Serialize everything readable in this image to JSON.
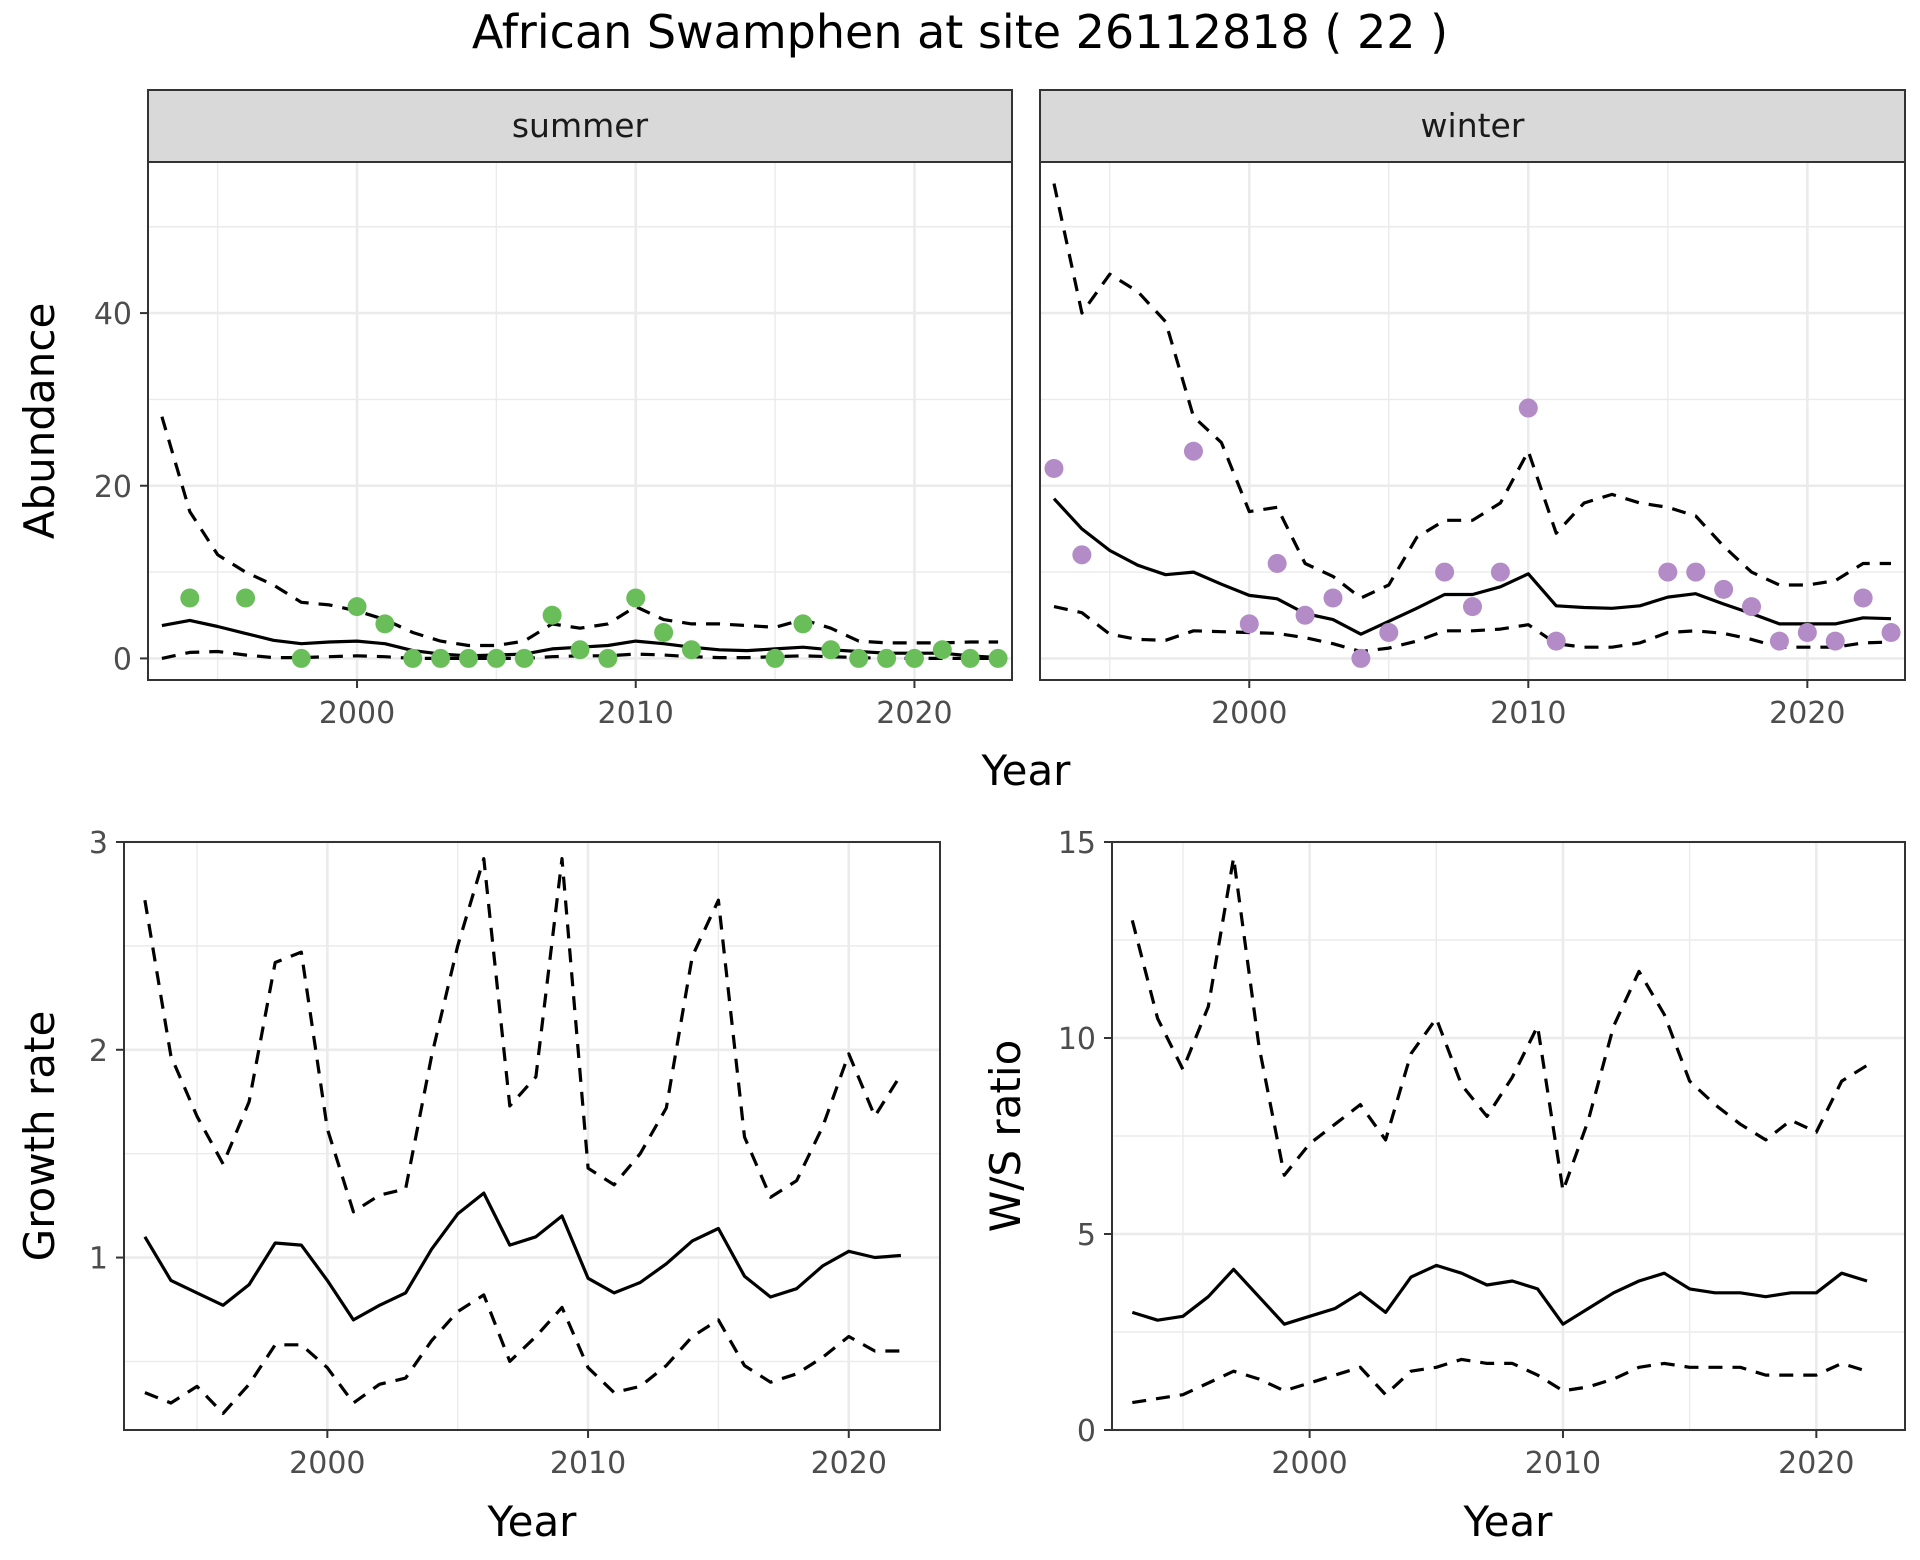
{
  "title": "African Swamphen at site 26112818 ( 22 )",
  "colors": {
    "summer_points": "#6ABE59",
    "winter_points": "#B38BC7",
    "lines": "#000000",
    "grid": "#EBEBEB",
    "strip_bg": "#D9D9D9"
  },
  "chart_data": [
    {
      "type": "scatter",
      "panel": "summer",
      "strip_label": "summer",
      "xlabel": "Year",
      "ylabel": "Abundance",
      "xlim": [
        1992.5,
        2023.5
      ],
      "ylim": [
        -2.5,
        57.5
      ],
      "xticks": [
        2000,
        2010,
        2020
      ],
      "yticks": [
        0,
        20,
        40
      ],
      "points": {
        "x": [
          1994,
          1996,
          1998,
          2000,
          2001,
          2002,
          2003,
          2004,
          2005,
          2006,
          2007,
          2008,
          2009,
          2010,
          2011,
          2012,
          2015,
          2016,
          2017,
          2018,
          2019,
          2020,
          2021,
          2022,
          2023
        ],
        "y": [
          7,
          7,
          0,
          6,
          4,
          0,
          0,
          0,
          0,
          0,
          5,
          1,
          0,
          7,
          3,
          1,
          0,
          4,
          1,
          0,
          0,
          0,
          1,
          0,
          0
        ]
      },
      "lines": [
        {
          "style": "solid",
          "x": [
            1993,
            1994,
            1995,
            1996,
            1997,
            1998,
            1999,
            2000,
            2001,
            2002,
            2003,
            2004,
            2005,
            2006,
            2007,
            2008,
            2009,
            2010,
            2011,
            2012,
            2013,
            2014,
            2015,
            2016,
            2017,
            2018,
            2019,
            2020,
            2021,
            2022,
            2023
          ],
          "y": [
            3.8,
            4.4,
            3.7,
            2.9,
            2.1,
            1.7,
            1.9,
            2.0,
            1.7,
            0.9,
            0.5,
            0.3,
            0.4,
            0.5,
            1.1,
            1.3,
            1.5,
            2.0,
            1.7,
            1.3,
            1.0,
            0.9,
            1.1,
            1.3,
            1.0,
            0.8,
            0.6,
            0.6,
            0.6,
            0.3,
            0.1
          ]
        },
        {
          "style": "dashed",
          "x": [
            1993,
            1994,
            1995,
            1996,
            1997,
            1998,
            1999,
            2000,
            2001,
            2002,
            2003,
            2004,
            2005,
            2006,
            2007,
            2008,
            2009,
            2010,
            2011,
            2012,
            2013,
            2014,
            2015,
            2016,
            2017,
            2018,
            2019,
            2020,
            2021,
            2022,
            2023
          ],
          "y": [
            28,
            17,
            12,
            10,
            8.5,
            6.5,
            6.2,
            5.5,
            4.5,
            3.0,
            2.0,
            1.5,
            1.5,
            2.0,
            4.0,
            3.5,
            4.0,
            6.0,
            4.5,
            4.0,
            4.0,
            3.8,
            3.6,
            4.5,
            3.5,
            2.0,
            1.8,
            1.8,
            1.8,
            1.9,
            1.9
          ]
        },
        {
          "style": "dashed",
          "x": [
            1993,
            1994,
            1995,
            1996,
            1997,
            1998,
            1999,
            2000,
            2001,
            2002,
            2003,
            2004,
            2005,
            2006,
            2007,
            2008,
            2009,
            2010,
            2011,
            2012,
            2013,
            2014,
            2015,
            2016,
            2017,
            2018,
            2019,
            2020,
            2021,
            2022,
            2023
          ],
          "y": [
            0.0,
            0.7,
            0.8,
            0.4,
            0.1,
            0.1,
            0.2,
            0.3,
            0.2,
            0.0,
            0.0,
            0.0,
            0.0,
            0.0,
            0.2,
            0.3,
            0.3,
            0.5,
            0.4,
            0.2,
            0.1,
            0.1,
            0.2,
            0.3,
            0.2,
            0.1,
            0.0,
            0.0,
            0.0,
            0.0,
            0.0
          ]
        }
      ]
    },
    {
      "type": "scatter",
      "panel": "winter",
      "strip_label": "winter",
      "xlabel": "Year",
      "ylabel": "Abundance",
      "xlim": [
        1992.5,
        2023.5
      ],
      "ylim": [
        -2.5,
        57.5
      ],
      "xticks": [
        2000,
        2010,
        2020
      ],
      "yticks": [
        0,
        20,
        40
      ],
      "points": {
        "x": [
          1993,
          1994,
          1998,
          2000,
          2001,
          2002,
          2003,
          2004,
          2005,
          2007,
          2008,
          2009,
          2010,
          2011,
          2015,
          2016,
          2017,
          2018,
          2019,
          2020,
          2021,
          2022,
          2023
        ],
        "y": [
          22,
          12,
          24,
          4,
          11,
          5,
          7,
          0,
          3,
          10,
          6,
          10,
          29,
          2,
          10,
          10,
          8,
          6,
          2,
          3,
          2,
          7,
          3
        ]
      },
      "lines": [
        {
          "style": "solid",
          "x": [
            1993,
            1994,
            1995,
            1996,
            1997,
            1998,
            1999,
            2000,
            2001,
            2002,
            2003,
            2004,
            2005,
            2006,
            2007,
            2008,
            2009,
            2010,
            2011,
            2012,
            2013,
            2014,
            2015,
            2016,
            2017,
            2018,
            2019,
            2020,
            2021,
            2022,
            2023
          ],
          "y": [
            18.5,
            15,
            12.5,
            10.8,
            9.7,
            10,
            8.6,
            7.3,
            6.9,
            5.2,
            4.5,
            2.8,
            4.3,
            5.8,
            7.4,
            7.4,
            8.3,
            9.8,
            6.1,
            5.9,
            5.8,
            6.1,
            7.1,
            7.5,
            6.3,
            5.2,
            4.0,
            4.0,
            4.0,
            4.7,
            4.6
          ]
        },
        {
          "style": "dashed",
          "x": [
            1993,
            1994,
            1995,
            1996,
            1997,
            1998,
            1999,
            2000,
            2001,
            2002,
            2003,
            2004,
            2005,
            2006,
            2007,
            2008,
            2009,
            2010,
            2011,
            2012,
            2013,
            2014,
            2015,
            2016,
            2017,
            2018,
            2019,
            2020,
            2021,
            2022,
            2023
          ],
          "y": [
            55,
            40,
            44.5,
            42.5,
            39,
            28,
            25,
            17,
            17.5,
            11,
            9.5,
            7,
            8.5,
            14,
            16,
            16,
            18,
            24,
            14.5,
            18,
            19,
            18,
            17.5,
            16.5,
            13,
            10,
            8.5,
            8.5,
            9,
            11,
            11
          ]
        },
        {
          "style": "dashed",
          "x": [
            1993,
            1994,
            1995,
            1996,
            1997,
            1998,
            1999,
            2000,
            2001,
            2002,
            2003,
            2004,
            2005,
            2006,
            2007,
            2008,
            2009,
            2010,
            2011,
            2012,
            2013,
            2014,
            2015,
            2016,
            2017,
            2018,
            2019,
            2020,
            2021,
            2022,
            2023
          ],
          "y": [
            6.0,
            5.3,
            2.8,
            2.2,
            2.1,
            3.2,
            3.1,
            3.0,
            2.9,
            2.4,
            1.7,
            0.8,
            1.2,
            2.0,
            3.2,
            3.2,
            3.4,
            3.9,
            1.7,
            1.3,
            1.3,
            1.8,
            3.0,
            3.2,
            2.9,
            2.2,
            1.3,
            1.3,
            1.3,
            1.8,
            1.9
          ]
        }
      ]
    },
    {
      "type": "line",
      "panel": "growth",
      "xlabel": "Year",
      "ylabel": "Growth rate",
      "xlim": [
        1992.2,
        2023.5
      ],
      "ylim": [
        0.17,
        3.0
      ],
      "xticks": [
        2000,
        2010,
        2020
      ],
      "yticks": [
        1,
        2,
        3
      ],
      "lines": [
        {
          "style": "solid",
          "x": [
            1993,
            1994,
            1995,
            1996,
            1997,
            1998,
            1999,
            2000,
            2001,
            2002,
            2003,
            2004,
            2005,
            2006,
            2007,
            2008,
            2009,
            2010,
            2011,
            2012,
            2013,
            2014,
            2015,
            2016,
            2017,
            2018,
            2019,
            2020,
            2021,
            2022
          ],
          "y": [
            1.1,
            0.89,
            0.83,
            0.77,
            0.87,
            1.07,
            1.06,
            0.89,
            0.7,
            0.77,
            0.83,
            1.04,
            1.21,
            1.31,
            1.06,
            1.1,
            1.2,
            0.9,
            0.83,
            0.88,
            0.97,
            1.08,
            1.14,
            0.91,
            0.81,
            0.85,
            0.96,
            1.03,
            1.0,
            1.01
          ]
        },
        {
          "style": "dashed",
          "x": [
            1993,
            1994,
            1995,
            1996,
            1997,
            1998,
            1999,
            2000,
            2001,
            2002,
            2003,
            2004,
            2005,
            2006,
            2007,
            2008,
            2009,
            2010,
            2011,
            2012,
            2013,
            2014,
            2015,
            2016,
            2017,
            2018,
            2019,
            2020,
            2021,
            2022
          ],
          "y": [
            2.72,
            1.97,
            1.68,
            1.45,
            1.75,
            2.42,
            2.47,
            1.62,
            1.22,
            1.3,
            1.33,
            1.97,
            2.5,
            2.92,
            1.73,
            1.87,
            2.92,
            1.43,
            1.35,
            1.5,
            1.72,
            2.45,
            2.72,
            1.58,
            1.29,
            1.37,
            1.63,
            1.98,
            1.68,
            1.88
          ]
        },
        {
          "style": "dashed",
          "x": [
            1993,
            1994,
            1995,
            1996,
            1997,
            1998,
            1999,
            2000,
            2001,
            2002,
            2003,
            2004,
            2005,
            2006,
            2007,
            2008,
            2009,
            2010,
            2011,
            2012,
            2013,
            2014,
            2015,
            2016,
            2017,
            2018,
            2019,
            2020,
            2021,
            2022
          ],
          "y": [
            0.35,
            0.3,
            0.38,
            0.25,
            0.39,
            0.58,
            0.58,
            0.47,
            0.3,
            0.39,
            0.42,
            0.6,
            0.74,
            0.82,
            0.5,
            0.62,
            0.76,
            0.47,
            0.35,
            0.38,
            0.48,
            0.62,
            0.7,
            0.48,
            0.4,
            0.44,
            0.52,
            0.62,
            0.55,
            0.55
          ]
        }
      ]
    },
    {
      "type": "line",
      "panel": "ratio",
      "xlabel": "Year",
      "ylabel": "W/S ratio",
      "xlim": [
        1992.2,
        2023.5
      ],
      "ylim": [
        0,
        15
      ],
      "xticks": [
        2000,
        2010,
        2020
      ],
      "yticks": [
        0,
        5,
        10,
        15
      ],
      "lines": [
        {
          "style": "solid",
          "x": [
            1993,
            1994,
            1995,
            1996,
            1997,
            1998,
            1999,
            2000,
            2001,
            2002,
            2003,
            2004,
            2005,
            2006,
            2007,
            2008,
            2009,
            2010,
            2011,
            2012,
            2013,
            2014,
            2015,
            2016,
            2017,
            2018,
            2019,
            2020,
            2021,
            2022
          ],
          "y": [
            3.0,
            2.8,
            2.9,
            3.4,
            4.1,
            3.4,
            2.7,
            2.9,
            3.1,
            3.5,
            3.0,
            3.9,
            4.2,
            4.0,
            3.7,
            3.8,
            3.6,
            2.7,
            3.1,
            3.5,
            3.8,
            4.0,
            3.6,
            3.5,
            3.5,
            3.4,
            3.5,
            3.5,
            4.0,
            3.8
          ]
        },
        {
          "style": "dashed",
          "x": [
            1993,
            1994,
            1995,
            1996,
            1997,
            1998,
            1999,
            2000,
            2001,
            2002,
            2003,
            2004,
            2005,
            2006,
            2007,
            2008,
            2009,
            2010,
            2011,
            2012,
            2013,
            2014,
            2015,
            2016,
            2017,
            2018,
            2019,
            2020,
            2021,
            2022
          ],
          "y": [
            13.0,
            10.5,
            9.2,
            10.8,
            14.6,
            9.8,
            6.5,
            7.3,
            7.8,
            8.3,
            7.4,
            9.6,
            10.5,
            8.8,
            8.0,
            9.0,
            10.3,
            6.1,
            7.9,
            10.3,
            11.7,
            10.6,
            8.9,
            8.3,
            7.8,
            7.4,
            7.9,
            7.6,
            8.9,
            9.3
          ]
        },
        {
          "style": "dashed",
          "x": [
            1993,
            1994,
            1995,
            1996,
            1997,
            1998,
            1999,
            2000,
            2001,
            2002,
            2003,
            2004,
            2005,
            2006,
            2007,
            2008,
            2009,
            2010,
            2011,
            2012,
            2013,
            2014,
            2015,
            2016,
            2017,
            2018,
            2019,
            2020,
            2021,
            2022
          ],
          "y": [
            0.7,
            0.8,
            0.9,
            1.2,
            1.5,
            1.3,
            1.0,
            1.2,
            1.4,
            1.6,
            0.9,
            1.5,
            1.6,
            1.8,
            1.7,
            1.7,
            1.4,
            1.0,
            1.1,
            1.3,
            1.6,
            1.7,
            1.6,
            1.6,
            1.6,
            1.4,
            1.4,
            1.4,
            1.7,
            1.5
          ]
        }
      ]
    }
  ]
}
